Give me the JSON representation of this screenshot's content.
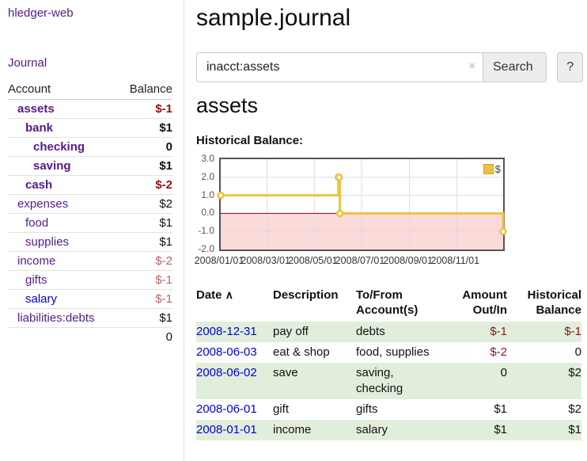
{
  "colors": {
    "accent_purple": "#551a8b",
    "link_blue": "#0000dd",
    "negative_strong": "#8e1519",
    "negative_muted": "#b36565",
    "row_green": "#e1eedb",
    "chart_gold": "#edc240",
    "chart_negative_fill": "#fbdada",
    "zero_line": "#8b0000"
  },
  "sidebar": {
    "brand": "hledger-web",
    "nav": {
      "journal": "Journal"
    },
    "accounts_table": {
      "header": {
        "account": "Account",
        "balance": "Balance"
      },
      "rows": [
        {
          "name": "assets",
          "balance": "$-1",
          "indent": 1,
          "bold": true,
          "negative": true,
          "unvisited": false
        },
        {
          "name": "bank",
          "balance": "$1",
          "indent": 2,
          "bold": true,
          "negative": false,
          "unvisited": false
        },
        {
          "name": "checking",
          "balance": "0",
          "indent": 3,
          "bold": true,
          "negative": false,
          "unvisited": false
        },
        {
          "name": "saving",
          "balance": "$1",
          "indent": 3,
          "bold": true,
          "negative": false,
          "unvisited": false
        },
        {
          "name": "cash",
          "balance": "$-2",
          "indent": 2,
          "bold": true,
          "negative": true,
          "unvisited": false
        },
        {
          "name": "expenses",
          "balance": "$2",
          "indent": 1,
          "bold": false,
          "negative": false,
          "unvisited": false
        },
        {
          "name": "food",
          "balance": "$1",
          "indent": 2,
          "bold": false,
          "negative": false,
          "unvisited": false
        },
        {
          "name": "supplies",
          "balance": "$1",
          "indent": 2,
          "bold": false,
          "negative": false,
          "unvisited": false
        },
        {
          "name": "income",
          "balance": "$-2",
          "indent": 1,
          "bold": false,
          "negative": true,
          "unvisited": false
        },
        {
          "name": "gifts",
          "balance": "$-1",
          "indent": 2,
          "bold": false,
          "negative": true,
          "unvisited": false
        },
        {
          "name": "salary",
          "balance": "$-1",
          "indent": 2,
          "bold": false,
          "negative": true,
          "unvisited": true
        },
        {
          "name": "liabilities:debts",
          "balance": "$1",
          "indent": 1,
          "bold": false,
          "negative": false,
          "unvisited": false
        }
      ],
      "total": "0"
    }
  },
  "header": {
    "title": "sample.journal",
    "search": {
      "value": "inacct:assets",
      "clear_icon": "×",
      "search_button": "Search",
      "help_button": "?"
    }
  },
  "account_page": {
    "heading": "assets",
    "chart_label": "Historical Balance:"
  },
  "chart_data": {
    "type": "line",
    "step": true,
    "title": "Historical Balance:",
    "series": [
      {
        "name": "$",
        "color": "#edc240",
        "points": [
          {
            "x": "2008-01-01",
            "y": 1
          },
          {
            "x": "2008-06-01",
            "y": 2
          },
          {
            "x": "2008-06-02",
            "y": 2
          },
          {
            "x": "2008-06-03",
            "y": 0
          },
          {
            "x": "2008-12-31",
            "y": -1
          }
        ]
      }
    ],
    "xlim": [
      "2008-01-01",
      "2008-12-31"
    ],
    "ylim": [
      -2,
      3
    ],
    "yticks": [
      3,
      2,
      1,
      0,
      -1,
      -2
    ],
    "xticks": [
      "2008/01/01",
      "2008/03/01",
      "2008/05/01",
      "2008/07/01",
      "2008/09/01",
      "2008/11/01"
    ],
    "legend": {
      "label": "$",
      "position": "top-right"
    },
    "grid": true,
    "negative_region_color": "#fbdada",
    "zero_line_color": "#8b0000"
  },
  "register": {
    "sort_indicator": "∧",
    "headers": {
      "date": "Date",
      "description": "Description",
      "tofrom": "To/From Account(s)",
      "amount": "Amount Out/In",
      "balance": "Historical Balance"
    },
    "rows": [
      {
        "date": "2008-12-31",
        "description": "pay off",
        "accounts": "debts",
        "amount": "$-1",
        "balance": "$-1",
        "amount_negative": true,
        "balance_negative": true
      },
      {
        "date": "2008-06-03",
        "description": "eat & shop",
        "accounts": "food, supplies",
        "amount": "$-2",
        "balance": "0",
        "amount_negative": true,
        "balance_negative": false
      },
      {
        "date": "2008-06-02",
        "description": "save",
        "accounts": "saving, checking",
        "amount": "0",
        "balance": "$2",
        "amount_negative": false,
        "balance_negative": false
      },
      {
        "date": "2008-06-01",
        "description": "gift",
        "accounts": "gifts",
        "amount": "$1",
        "balance": "$2",
        "amount_negative": false,
        "balance_negative": false
      },
      {
        "date": "2008-01-01",
        "description": "income",
        "accounts": "salary",
        "amount": "$1",
        "balance": "$1",
        "amount_negative": false,
        "balance_negative": false
      }
    ]
  }
}
